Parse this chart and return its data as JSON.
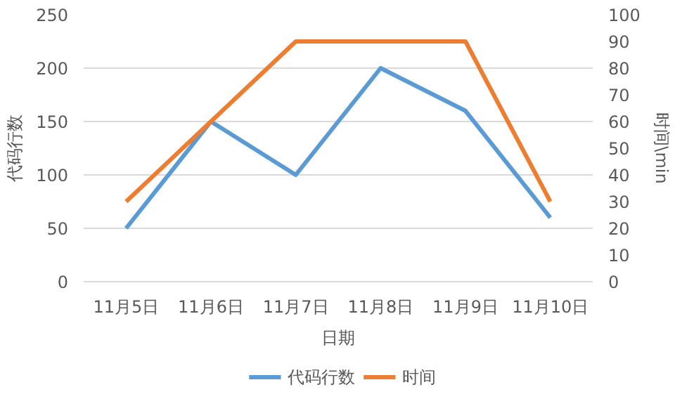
{
  "chart_data": {
    "type": "line",
    "xlabel": "日期",
    "ylabel": "代码行数",
    "y2label": "时间\\min",
    "categories": [
      "11月5日",
      "11月6日",
      "11月7日",
      "11月8日",
      "11月9日",
      "11月10日"
    ],
    "series": [
      {
        "name": "代码行数",
        "color": "#5b9bd5",
        "values": [
          50,
          150,
          100,
          200,
          160,
          60
        ]
      },
      {
        "name": "时间",
        "color": "#ed7d31",
        "values": [
          30,
          60,
          90,
          90,
          90,
          30
        ],
        "axis": "y2"
      }
    ],
    "ylim": [
      0,
      250
    ],
    "yticks": [
      0,
      50,
      100,
      150,
      200,
      250
    ],
    "y2lim": [
      0,
      100
    ],
    "y2ticks": [
      0,
      10,
      20,
      30,
      40,
      50,
      60,
      70,
      80,
      90,
      100
    ],
    "grid": "y",
    "legend": "bottom",
    "marker": "none",
    "line_style": "solid"
  }
}
